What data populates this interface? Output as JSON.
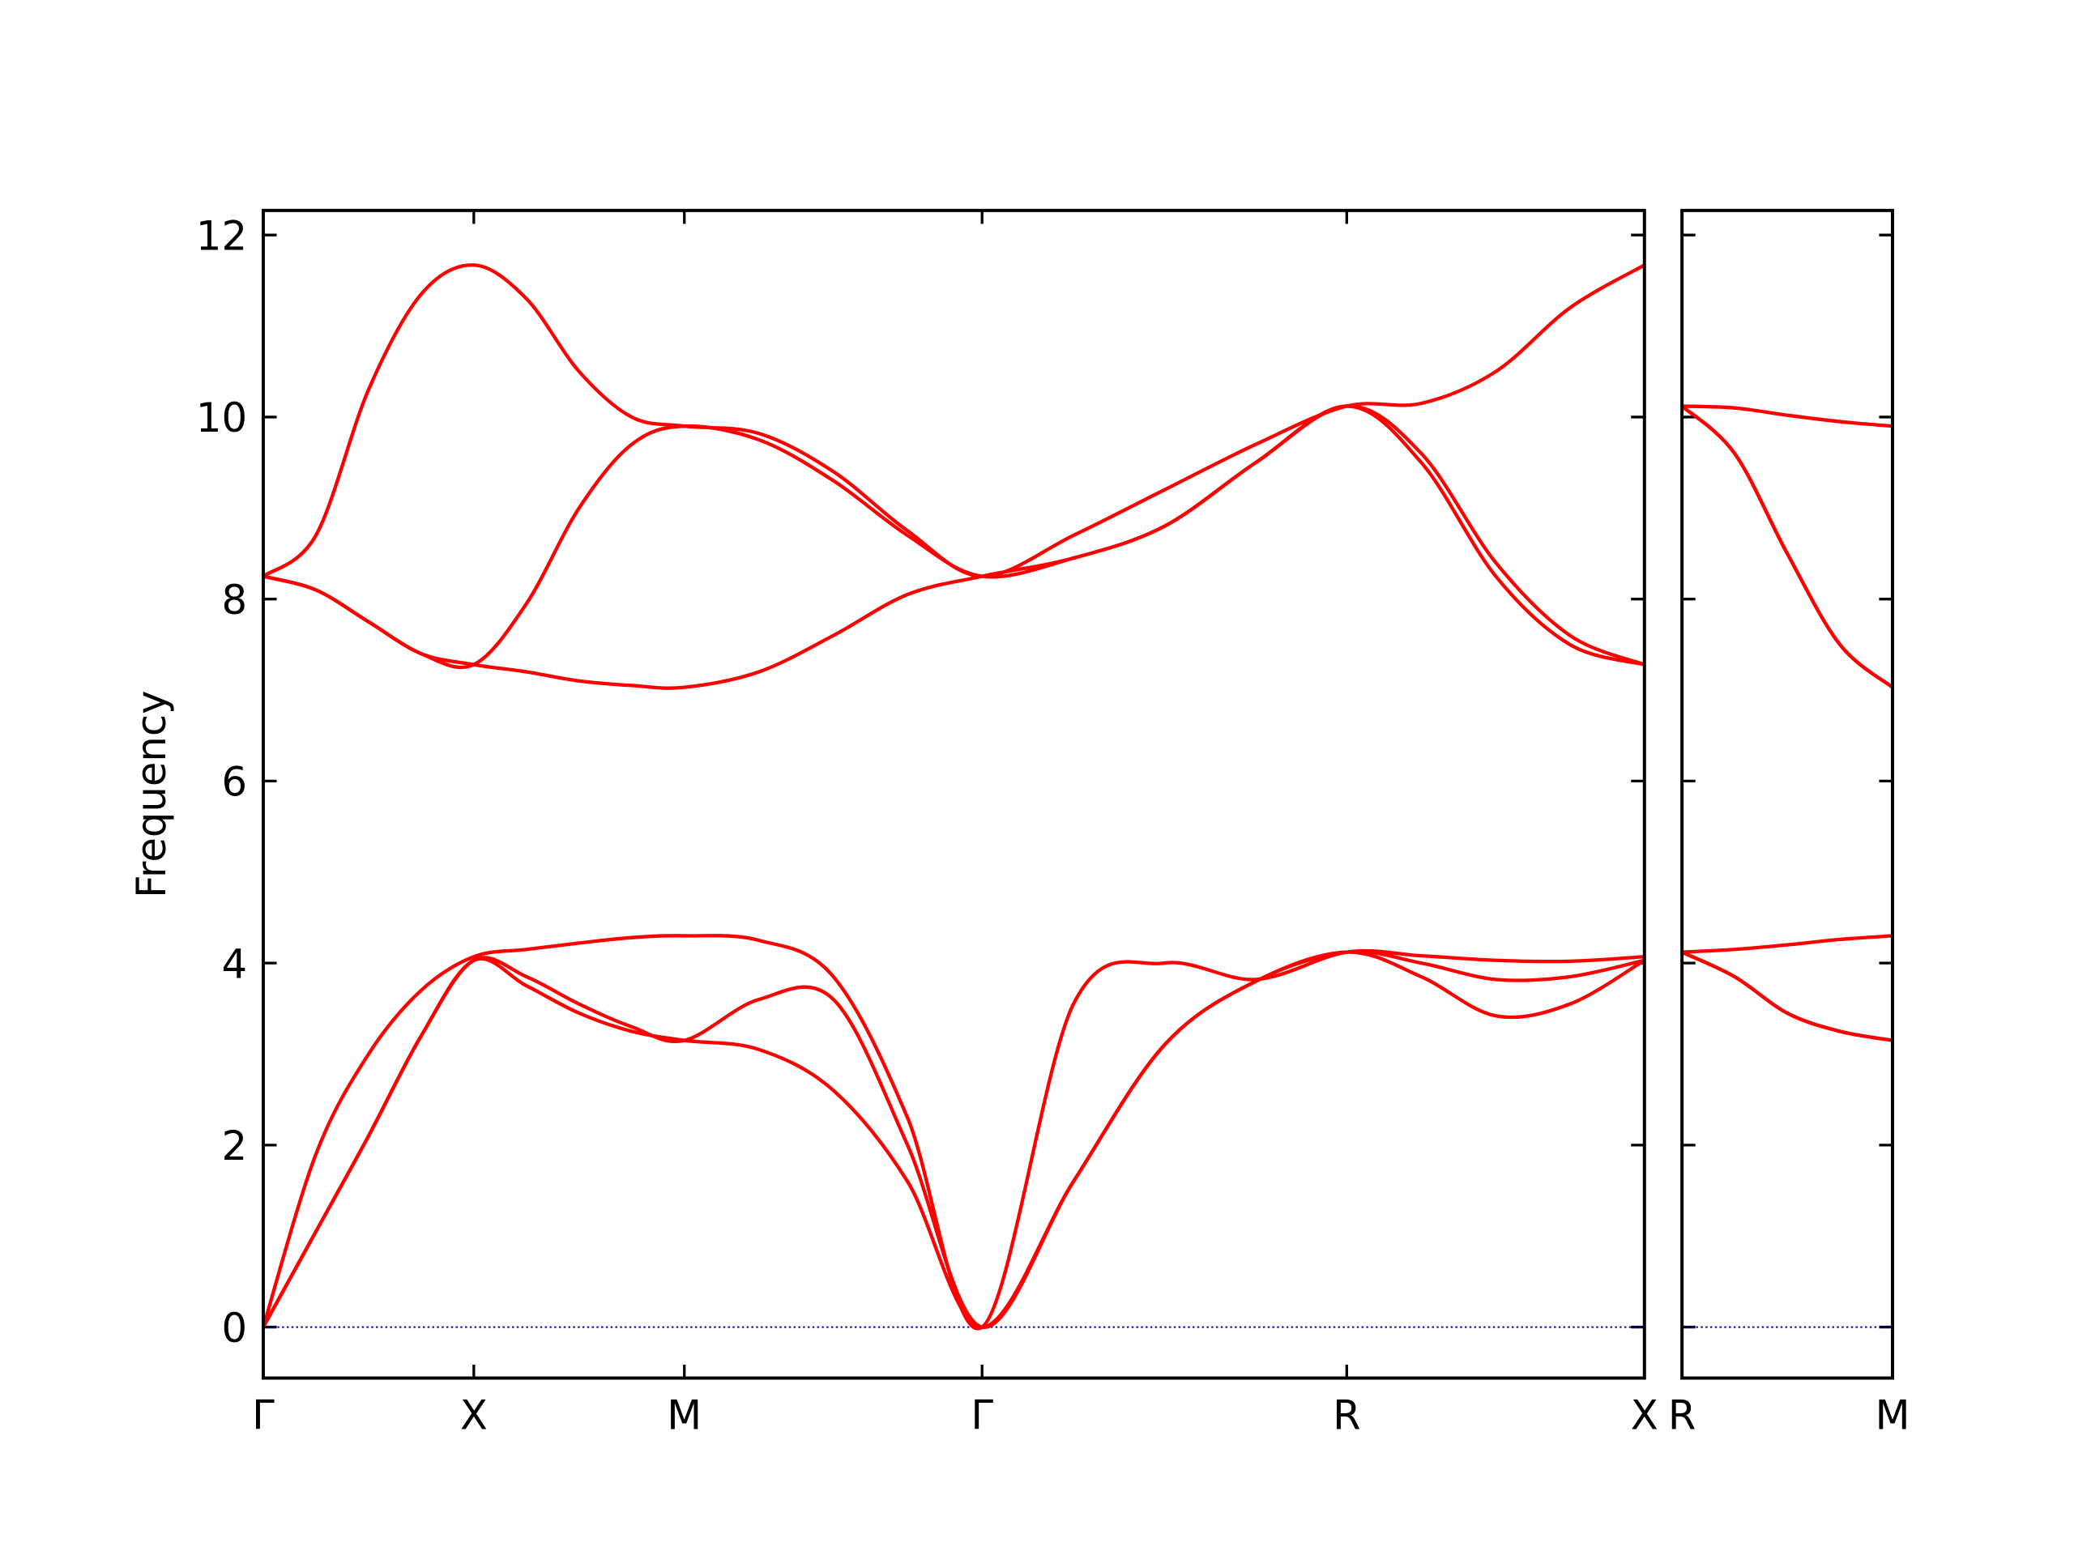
{
  "chart_data": [
    {
      "type": "line",
      "ylabel": "Frequency",
      "x": [
        0,
        0.125,
        0.25,
        0.375,
        0.5,
        0.625,
        0.75,
        0.875,
        1.0,
        1.177,
        1.354,
        1.53,
        1.707,
        1.924,
        2.14,
        2.357,
        2.573,
        2.75,
        2.927,
        3.103,
        3.28
      ],
      "xlim": [
        0,
        3.28
      ],
      "ylim": [
        -0.56,
        12.27
      ],
      "xticks": [
        {
          "value": 0,
          "label": "Γ"
        },
        {
          "value": 0.5,
          "label": "X"
        },
        {
          "value": 1.0,
          "label": "M"
        },
        {
          "value": 1.707,
          "label": "Γ"
        },
        {
          "value": 2.573,
          "label": "R"
        },
        {
          "value": 3.28,
          "label": "X"
        }
      ],
      "yticks": [
        0,
        2,
        4,
        6,
        8,
        10,
        12
      ],
      "zero_line": true,
      "series": [
        {
          "color": "#ff0000",
          "values": [
            0,
            1.05,
            2.1,
            3.2,
            4.03,
            3.75,
            3.45,
            3.25,
            3.15,
            3.05,
            2.6,
            1.6,
            0,
            1.6,
            3.1,
            3.8,
            4.12,
            3.85,
            3.42,
            3.55,
            4.03
          ]
        },
        {
          "color": "#ff0000",
          "values": [
            0,
            1.05,
            2.1,
            3.2,
            4.03,
            3.85,
            3.55,
            3.3,
            3.15,
            3.6,
            3.6,
            2.0,
            0,
            1.6,
            3.1,
            3.8,
            4.12,
            4.0,
            3.82,
            3.85,
            4.03
          ]
        },
        {
          "color": "#ff0000",
          "values": [
            0,
            1.9,
            3.0,
            3.7,
            4.07,
            4.15,
            4.22,
            4.28,
            4.3,
            4.25,
            3.85,
            2.3,
            0,
            3.55,
            4.0,
            3.82,
            4.12,
            4.08,
            4.03,
            4.02,
            4.07
          ]
        },
        {
          "color": "#ff0000",
          "values": [
            8.25,
            8.1,
            7.75,
            7.4,
            7.28,
            7.2,
            7.1,
            7.05,
            7.03,
            7.2,
            7.6,
            8.05,
            8.25,
            8.45,
            8.8,
            9.5,
            10.12,
            9.5,
            8.25,
            7.5,
            7.28
          ]
        },
        {
          "color": "#ff0000",
          "values": [
            8.25,
            8.1,
            7.75,
            7.4,
            7.28,
            7.95,
            9.0,
            9.7,
            9.9,
            9.75,
            9.3,
            8.7,
            8.25,
            8.45,
            8.8,
            9.5,
            10.12,
            9.6,
            8.4,
            7.6,
            7.28
          ]
        },
        {
          "color": "#ff0000",
          "values": [
            8.25,
            8.7,
            10.3,
            11.35,
            11.67,
            11.3,
            10.5,
            10.0,
            9.9,
            9.82,
            9.4,
            8.75,
            8.25,
            8.7,
            9.2,
            9.7,
            10.12,
            10.15,
            10.5,
            11.2,
            11.67
          ]
        }
      ]
    },
    {
      "type": "line",
      "x": [
        0,
        0.125,
        0.25,
        0.375,
        0.5
      ],
      "xlim": [
        0,
        0.5
      ],
      "ylim": [
        -0.56,
        12.27
      ],
      "xticks": [
        {
          "value": 0,
          "label": "R"
        },
        {
          "value": 0.5,
          "label": "M"
        }
      ],
      "yticks": [
        0,
        2,
        4,
        6,
        8,
        10,
        12
      ],
      "zero_line": true,
      "series": [
        {
          "color": "#ff0000",
          "values": [
            4.12,
            3.85,
            3.45,
            3.25,
            3.15
          ]
        },
        {
          "color": "#ff0000",
          "values": [
            4.12,
            3.85,
            3.45,
            3.25,
            3.15
          ]
        },
        {
          "color": "#ff0000",
          "values": [
            4.12,
            4.15,
            4.2,
            4.26,
            4.3
          ]
        },
        {
          "color": "#ff0000",
          "values": [
            10.12,
            9.6,
            8.5,
            7.5,
            7.03
          ]
        },
        {
          "color": "#ff0000",
          "values": [
            10.12,
            9.6,
            8.5,
            7.5,
            7.03
          ]
        },
        {
          "color": "#ff0000",
          "values": [
            10.12,
            10.1,
            10.02,
            9.95,
            9.9
          ]
        }
      ]
    }
  ]
}
